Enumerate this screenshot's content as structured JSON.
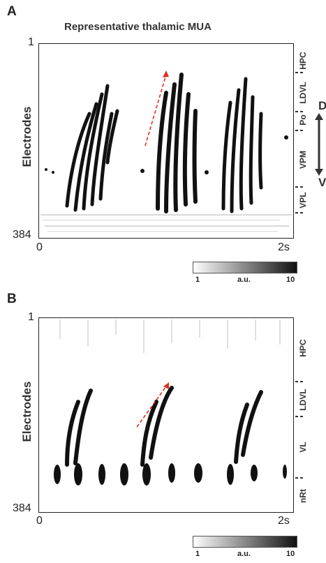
{
  "panelA": {
    "letter": "A",
    "title": "Representative thalamic MUA",
    "y_label": "Electrodes",
    "y_top": "1",
    "y_bottom": "384",
    "x_start": "0",
    "x_end": "2s",
    "regions": [
      "HPC",
      "LDVL",
      "Po",
      "VPM",
      "VPL"
    ],
    "orientation": {
      "dorsal": "D",
      "ventral": "V"
    },
    "colorbar": {
      "min": "1",
      "label": "a.u.",
      "max": "10"
    }
  },
  "panelB": {
    "letter": "B",
    "y_label": "Electrodes",
    "y_top": "1",
    "y_bottom": "384",
    "x_start": "0",
    "x_end": "2s",
    "regions": [
      "HPC",
      "LDVL",
      "VL",
      "nRt"
    ],
    "colorbar": {
      "min": "1",
      "label": "a.u.",
      "max": "10"
    }
  },
  "colors": {
    "ink": "#111111",
    "arrow": "#e03020",
    "frame": "#222222"
  }
}
